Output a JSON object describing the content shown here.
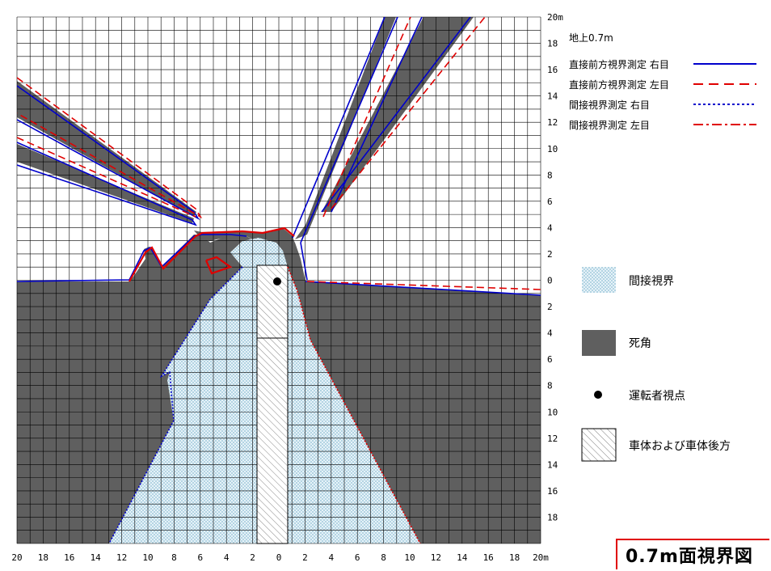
{
  "x_ticks": [
    "20",
    "18",
    "16",
    "14",
    "12",
    "10",
    "8",
    "6",
    "4",
    "2",
    "0",
    "2",
    "4",
    "6",
    "8",
    "10",
    "12",
    "14",
    "16",
    "18",
    "20m"
  ],
  "y_ticks": [
    "20m",
    "18",
    "16",
    "14",
    "12",
    "10",
    "8",
    "6",
    "4",
    "2",
    "0",
    "2",
    "4",
    "6",
    "8",
    "10",
    "12",
    "14",
    "16",
    "18"
  ],
  "legend": {
    "header": "地上0.7m",
    "items": [
      {
        "label": "直接前方視界測定 右目",
        "color": "#0000cc",
        "style": "solid"
      },
      {
        "label": "直接前方視界測定 左目",
        "color": "#e00000",
        "style": "dashed"
      },
      {
        "label": "間接視界測定 右目",
        "color": "#0000cc",
        "style": "dotted"
      },
      {
        "label": "間接視界測定 左目",
        "color": "#e00000",
        "style": "dashdot"
      }
    ]
  },
  "key": [
    {
      "label": "間接視界",
      "icon": "checker-swatch"
    },
    {
      "label": "死角",
      "icon": "dark-swatch"
    },
    {
      "label": "運転者視点",
      "icon": "dot"
    },
    {
      "label": "車体および車体後方",
      "icon": "hatch-swatch"
    }
  ],
  "title": "0.7m面視界図",
  "colors": {
    "blind": "#5f5f5f",
    "indirect": "#b9d9e6",
    "right_eye": "#0000cc",
    "left_eye": "#e00000"
  }
}
